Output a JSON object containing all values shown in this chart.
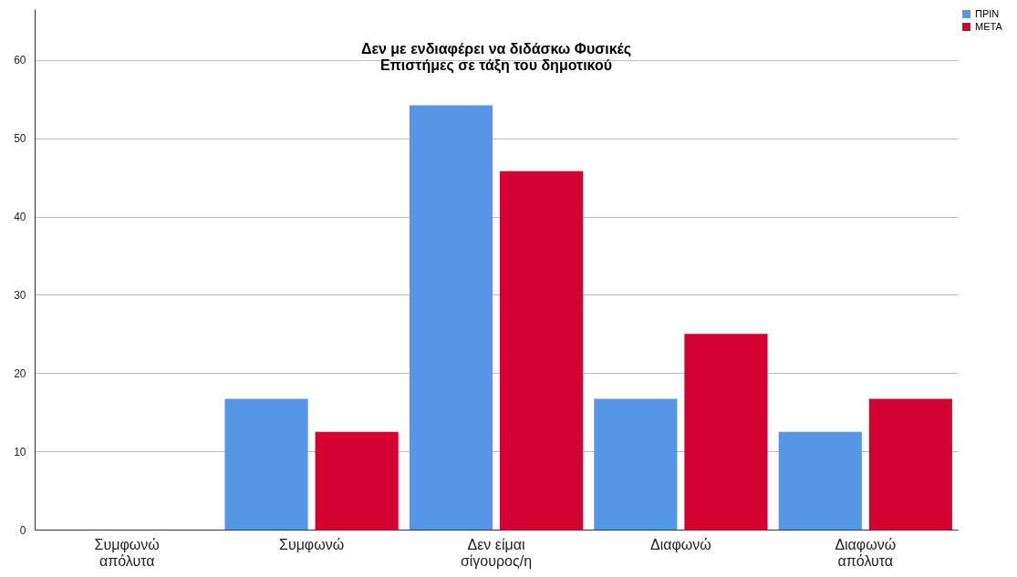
{
  "chart_data": {
    "type": "bar",
    "title": "Δεν με ενδιαφέρει να διδάσκω Φυσικές Επιστήμες σε τάξη του δημοτικού",
    "categories": [
      "Συμφωνώ απόλυτα",
      "Συμφωνώ",
      "Δεν είμαι σίγουρος/η",
      "Διαφωνώ",
      "Διαφωνώ απόλυτα"
    ],
    "series": [
      {
        "name": "ΠΡΙΝ",
        "color": "#5596e6",
        "values": [
          0,
          16.7,
          54.2,
          16.7,
          12.5
        ]
      },
      {
        "name": "ΜΕΤΑ",
        "color": "#d50032",
        "values": [
          0,
          12.5,
          45.8,
          25,
          16.7
        ]
      }
    ],
    "ylim": [
      0,
      66.5
    ],
    "yticks": [
      0,
      10,
      20,
      30,
      40,
      50,
      60
    ],
    "grid": "y",
    "legend": "top right"
  }
}
